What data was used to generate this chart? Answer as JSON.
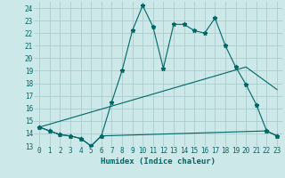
{
  "title": "",
  "xlabel": "Humidex (Indice chaleur)",
  "background_color": "#cce8e8",
  "grid_color": "#aacccc",
  "line_color": "#006666",
  "xlim": [
    -0.5,
    23.5
  ],
  "ylim": [
    13,
    24.5
  ],
  "yticks": [
    13,
    14,
    15,
    16,
    17,
    18,
    19,
    20,
    21,
    22,
    23,
    24
  ],
  "xticks": [
    0,
    1,
    2,
    3,
    4,
    5,
    6,
    7,
    8,
    9,
    10,
    11,
    12,
    13,
    14,
    15,
    16,
    17,
    18,
    19,
    20,
    21,
    22,
    23
  ],
  "line1_x": [
    0,
    1,
    2,
    3,
    4,
    5,
    6,
    7,
    8,
    9,
    10,
    11,
    12,
    13,
    14,
    15,
    16,
    17,
    18,
    19,
    20,
    21,
    22,
    23
  ],
  "line1_y": [
    14.5,
    14.2,
    13.9,
    13.8,
    13.6,
    13.0,
    13.8,
    16.5,
    19.0,
    22.2,
    24.2,
    22.5,
    19.2,
    22.7,
    22.7,
    22.2,
    22.0,
    23.2,
    21.0,
    19.3,
    17.9,
    16.3,
    14.2,
    13.8
  ],
  "line2_x": [
    0,
    1,
    2,
    3,
    4,
    5,
    6,
    22,
    23
  ],
  "line2_y": [
    14.5,
    14.2,
    13.9,
    13.8,
    13.6,
    13.0,
    13.8,
    14.2,
    13.8
  ],
  "line3_x": [
    0,
    20,
    23
  ],
  "line3_y": [
    14.5,
    19.3,
    17.5
  ],
  "xlabel_fontsize": 6.5,
  "tick_fontsize": 5.5
}
